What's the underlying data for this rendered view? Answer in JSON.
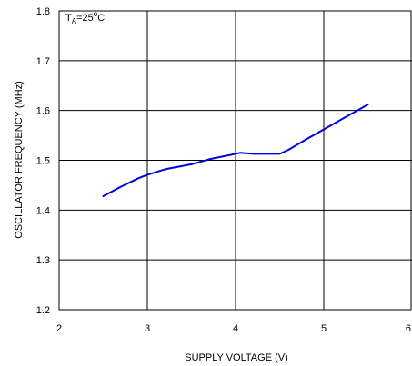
{
  "chart_data": {
    "type": "line",
    "title": "",
    "xlabel": "SUPPLY VOLTAGE (V)",
    "ylabel": "OSCILLATOR FREQUENCY (MHz)",
    "xlim": [
      2,
      6
    ],
    "ylim": [
      1.2,
      1.8
    ],
    "xticks": [
      2,
      3,
      4,
      5,
      6
    ],
    "yticks": [
      1.2,
      1.3,
      1.4,
      1.5,
      1.6,
      1.7,
      1.8
    ],
    "grid": true,
    "annotation": {
      "label": "T",
      "sub": "A",
      "equals": "=25",
      "sup": "o",
      "unit": "C"
    },
    "colors": {
      "line": "#0000e0",
      "grid": "#000000",
      "frame": "#000000"
    },
    "series": [
      {
        "x": [
          2.5,
          2.7,
          2.9,
          3.0,
          3.2,
          3.5,
          3.7,
          4.0,
          4.05,
          4.2,
          4.5,
          4.6,
          4.8,
          5.0,
          5.2,
          5.5
        ],
        "y": [
          1.428,
          1.447,
          1.464,
          1.471,
          1.482,
          1.492,
          1.502,
          1.513,
          1.515,
          1.513,
          1.513,
          1.521,
          1.542,
          1.562,
          1.582,
          1.612
        ]
      }
    ]
  }
}
